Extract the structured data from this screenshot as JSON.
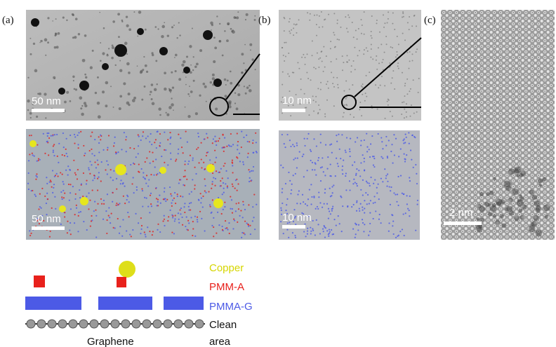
{
  "panels": [
    {
      "label": "(a)",
      "images": [
        {
          "scale_bar": "50 nm"
        },
        {
          "scale_bar": "50 nm"
        }
      ]
    },
    {
      "label": "(b)",
      "images": [
        {
          "scale_bar": "10 nm"
        },
        {
          "scale_bar": "10 nm"
        }
      ]
    },
    {
      "label": "(c)",
      "images": [
        {
          "scale_bar": "2 nm"
        }
      ]
    }
  ],
  "legend": {
    "items": [
      "Copper",
      "PMM-A",
      "PMMA-G"
    ],
    "clean": [
      "Clean",
      "area"
    ]
  },
  "schematic": {
    "label": "Graphene"
  }
}
